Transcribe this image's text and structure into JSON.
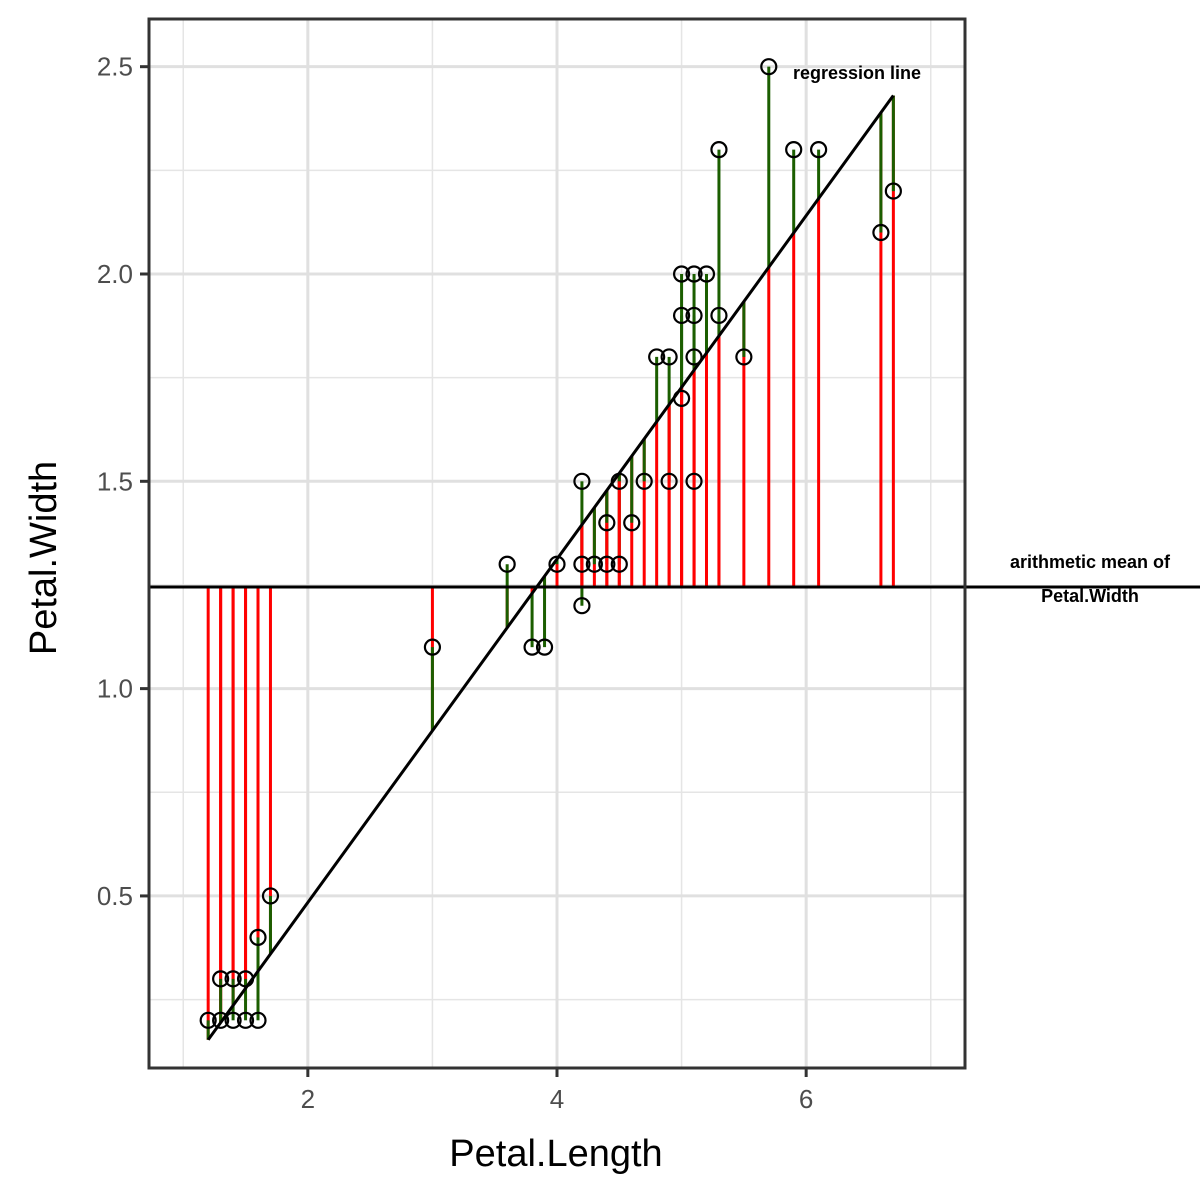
{
  "chart_data": {
    "type": "scatter",
    "title": "",
    "xlabel": "Petal.Length",
    "ylabel": "Petal.Width",
    "xlim": [
      0.725,
      7.275
    ],
    "ylim": [
      0.085,
      2.615
    ],
    "xticks": [
      2,
      4,
      6
    ],
    "xtick_labels": [
      "2",
      "4",
      "6"
    ],
    "yticks": [
      0.5,
      1.0,
      1.5,
      2.0,
      2.5
    ],
    "ytick_labels": [
      "0.5",
      "1.0",
      "1.5",
      "2.0",
      "2.5"
    ],
    "grid": true,
    "mean_y": 1.245,
    "regression": {
      "intercept": -0.3439,
      "slope": 0.4141
    },
    "points": [
      {
        "x": 1.2,
        "y": 0.2
      },
      {
        "x": 1.3,
        "y": 0.2
      },
      {
        "x": 1.3,
        "y": 0.3
      },
      {
        "x": 1.4,
        "y": 0.2
      },
      {
        "x": 1.4,
        "y": 0.3
      },
      {
        "x": 1.5,
        "y": 0.2
      },
      {
        "x": 1.5,
        "y": 0.3
      },
      {
        "x": 1.6,
        "y": 0.2
      },
      {
        "x": 1.6,
        "y": 0.4
      },
      {
        "x": 1.7,
        "y": 0.5
      },
      {
        "x": 3.0,
        "y": 1.1
      },
      {
        "x": 3.6,
        "y": 1.3
      },
      {
        "x": 3.8,
        "y": 1.1
      },
      {
        "x": 3.9,
        "y": 1.1
      },
      {
        "x": 4.0,
        "y": 1.3
      },
      {
        "x": 4.2,
        "y": 1.2
      },
      {
        "x": 4.2,
        "y": 1.3
      },
      {
        "x": 4.2,
        "y": 1.5
      },
      {
        "x": 4.3,
        "y": 1.3
      },
      {
        "x": 4.4,
        "y": 1.3
      },
      {
        "x": 4.4,
        "y": 1.4
      },
      {
        "x": 4.5,
        "y": 1.3
      },
      {
        "x": 4.5,
        "y": 1.5
      },
      {
        "x": 4.6,
        "y": 1.4
      },
      {
        "x": 4.7,
        "y": 1.5
      },
      {
        "x": 4.8,
        "y": 1.8
      },
      {
        "x": 4.9,
        "y": 1.5
      },
      {
        "x": 4.9,
        "y": 1.8
      },
      {
        "x": 5.0,
        "y": 1.7
      },
      {
        "x": 5.0,
        "y": 1.9
      },
      {
        "x": 5.0,
        "y": 2.0
      },
      {
        "x": 5.1,
        "y": 1.5
      },
      {
        "x": 5.1,
        "y": 1.8
      },
      {
        "x": 5.1,
        "y": 1.9
      },
      {
        "x": 5.1,
        "y": 2.0
      },
      {
        "x": 5.2,
        "y": 2.0
      },
      {
        "x": 5.3,
        "y": 1.9
      },
      {
        "x": 5.3,
        "y": 2.3
      },
      {
        "x": 5.5,
        "y": 1.8
      },
      {
        "x": 5.7,
        "y": 2.5
      },
      {
        "x": 5.9,
        "y": 2.3
      },
      {
        "x": 6.1,
        "y": 2.3
      },
      {
        "x": 6.6,
        "y": 2.1
      },
      {
        "x": 6.7,
        "y": 2.2
      }
    ],
    "annotations": {
      "regression_label": "regression line",
      "mean_label_line1": "arithmetic mean of",
      "mean_label_line2": "Petal.Width"
    },
    "colors": {
      "mean_segment": "#ff0000",
      "residual_segment": "#1b5e00",
      "lines": "#000000",
      "grid": "#e5e5e5"
    }
  }
}
